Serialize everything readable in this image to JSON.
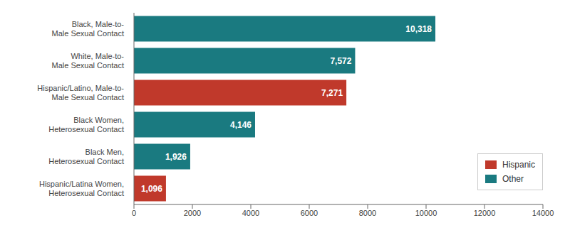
{
  "chart_data": {
    "type": "bar",
    "orientation": "horizontal",
    "categories": [
      "Hispanic/Latina Women,\nHeterosexual Contact",
      "Black Men,\nHeterosexual Contact",
      "Black Women,\nHeterosexual Contact",
      "Hispanic/Latino, Male-to-\nMale Sexual Contact",
      "White, Male-to-\nMale Sexual Contact",
      "Black, Male-to-\nMale Sexual Contact"
    ],
    "series": [
      {
        "name": "Hispanic",
        "color": "#c0392b",
        "values": [
          1096,
          null,
          null,
          7271,
          null,
          null
        ],
        "value_labels": [
          "1,096",
          null,
          null,
          "7,271",
          null,
          null
        ]
      },
      {
        "name": "Other",
        "color": "#1a7a80",
        "values": [
          null,
          1926,
          4146,
          null,
          7572,
          10318
        ],
        "value_labels": [
          null,
          "1,926",
          "4,146",
          null,
          "7,572",
          "10,318"
        ]
      }
    ],
    "xlim": [
      0,
      14000
    ],
    "xticks": [
      0,
      2000,
      4000,
      6000,
      8000,
      10000,
      12000,
      14000
    ],
    "data_labels": true,
    "grid": false,
    "legend": "lower right"
  }
}
